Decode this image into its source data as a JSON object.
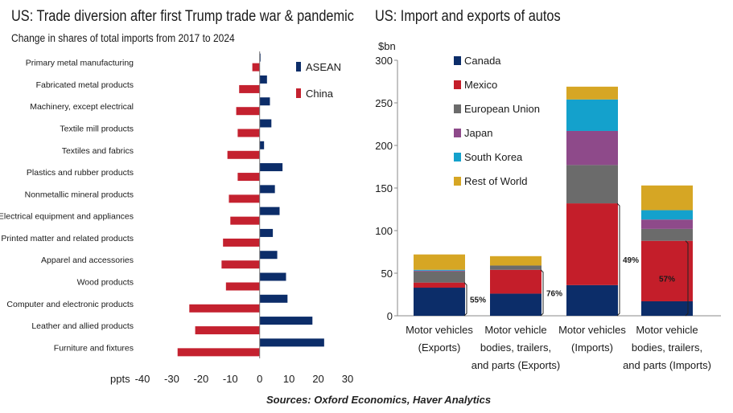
{
  "left_title": "US: Trade diversion after first Trump trade war & pandemic",
  "right_title": "US: Import and exports of autos",
  "source": "Sources: Oxford Economics, Haver Analytics",
  "colors": {
    "asean": "#0c2d69",
    "china": "#c4212f",
    "canada": "#0c2d69",
    "mexico": "#c41e2a",
    "eu": "#6b6b6b",
    "japan": "#8e4a8a",
    "south_korea": "#14a1cc",
    "rest": "#d6a624"
  },
  "chart_data": [
    {
      "type": "bar",
      "orientation": "horizontal",
      "title": "US: Trade diversion after first Trump trade war & pandemic",
      "subtitle": "Change in shares of total imports from 2017 to 2024",
      "xlabel": "ppts",
      "xlim": [
        -40,
        30
      ],
      "xticks": [
        -40,
        -30,
        -20,
        -10,
        0,
        10,
        20,
        30
      ],
      "categories": [
        "Primary metal manufacturing",
        "Fabricated metal products",
        "Machinery, except electrical",
        "Textile mill products",
        "Textiles and fabrics",
        "Plastics and rubber products",
        "Nonmetallic mineral products",
        "Electrical equipment and appliances",
        "Printed matter and related products",
        "Apparel and accessories",
        "Wood products",
        "Computer and electronic products",
        "Leather and allied products",
        "Furniture and fixtures"
      ],
      "series": [
        {
          "name": "ASEAN",
          "color_key": "asean",
          "values": [
            0.3,
            2.5,
            3.5,
            4.0,
            1.5,
            7.8,
            5.2,
            6.8,
            4.5,
            6.0,
            9.0,
            9.5,
            18.0,
            22.0
          ]
        },
        {
          "name": "China",
          "color_key": "china",
          "values": [
            -2.5,
            -7.0,
            -8.0,
            -7.5,
            -11.0,
            -7.5,
            -10.5,
            -10.0,
            -12.5,
            -13.0,
            -11.5,
            -24.0,
            -22.0,
            -28.0
          ]
        }
      ],
      "legend": [
        "ASEAN",
        "China"
      ]
    },
    {
      "type": "bar",
      "stacked": true,
      "title": "US: Import and exports of autos",
      "ylabel": "$bn",
      "ylim": [
        0,
        300
      ],
      "yticks": [
        0,
        50,
        100,
        150,
        200,
        250,
        300
      ],
      "categories": [
        [
          "Motor vehicles",
          "(Exports)"
        ],
        [
          "Motor vehicle",
          "bodies, trailers,",
          "and parts (Exports)"
        ],
        [
          "Motor vehicles",
          "(Imports)"
        ],
        [
          "Motor vehicle",
          "bodies, trailers,",
          "and parts (Imports)"
        ]
      ],
      "series": [
        {
          "name": "Canada",
          "color_key": "canada",
          "values": [
            33,
            26,
            36,
            17
          ]
        },
        {
          "name": "Mexico",
          "color_key": "mexico",
          "values": [
            6,
            28,
            96,
            71
          ]
        },
        {
          "name": "European Union",
          "color_key": "eu",
          "values": [
            13,
            5,
            45,
            14
          ]
        },
        {
          "name": "Japan",
          "color_key": "japan",
          "values": [
            1,
            0,
            40,
            11
          ]
        },
        {
          "name": "South Korea",
          "color_key": "south_korea",
          "values": [
            1,
            0,
            37,
            11
          ]
        },
        {
          "name": "Rest of World",
          "color_key": "rest",
          "values": [
            18,
            11,
            15,
            29
          ]
        }
      ],
      "annotations": [
        {
          "category_index": 0,
          "label": "55%"
        },
        {
          "category_index": 1,
          "label": "76%"
        },
        {
          "category_index": 2,
          "label": "49%"
        },
        {
          "category_index": 3,
          "label": "57%"
        }
      ]
    }
  ]
}
